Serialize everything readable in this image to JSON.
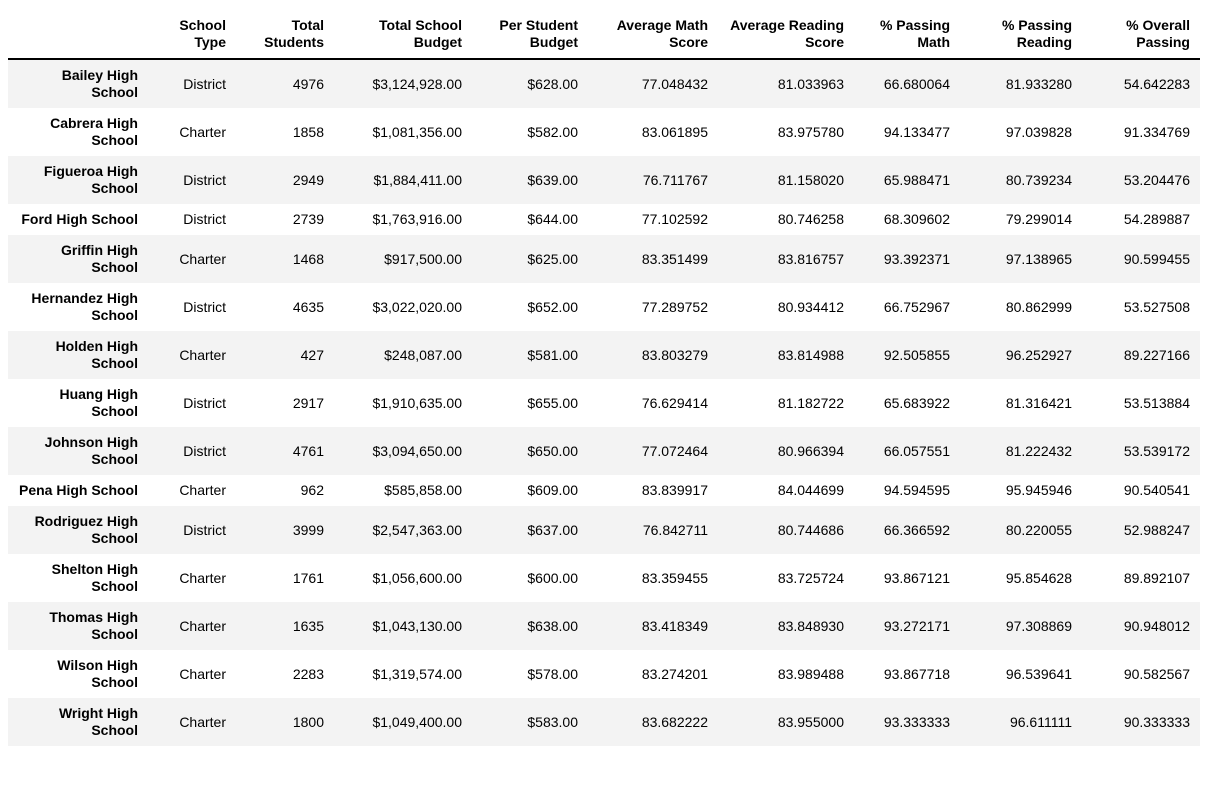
{
  "style": {
    "stripe_color": "#f3f3f3",
    "text_color": "#000000",
    "header_rule_color": "#000000",
    "background_color": "#ffffff"
  },
  "chart_data": {
    "type": "table",
    "title": "",
    "index_header": "",
    "columns": [
      "School Type",
      "Total Students",
      "Total School Budget",
      "Per Student Budget",
      "Average Math Score",
      "Average Reading Score",
      "% Passing Math",
      "% Passing Reading",
      "% Overall Passing"
    ],
    "rows": [
      {
        "index": "Bailey High School",
        "values": [
          "District",
          "4976",
          "$3,124,928.00",
          "$628.00",
          "77.048432",
          "81.033963",
          "66.680064",
          "81.933280",
          "54.642283"
        ]
      },
      {
        "index": "Cabrera High School",
        "values": [
          "Charter",
          "1858",
          "$1,081,356.00",
          "$582.00",
          "83.061895",
          "83.975780",
          "94.133477",
          "97.039828",
          "91.334769"
        ]
      },
      {
        "index": "Figueroa High School",
        "values": [
          "District",
          "2949",
          "$1,884,411.00",
          "$639.00",
          "76.711767",
          "81.158020",
          "65.988471",
          "80.739234",
          "53.204476"
        ]
      },
      {
        "index": "Ford High School",
        "values": [
          "District",
          "2739",
          "$1,763,916.00",
          "$644.00",
          "77.102592",
          "80.746258",
          "68.309602",
          "79.299014",
          "54.289887"
        ]
      },
      {
        "index": "Griffin High School",
        "values": [
          "Charter",
          "1468",
          "$917,500.00",
          "$625.00",
          "83.351499",
          "83.816757",
          "93.392371",
          "97.138965",
          "90.599455"
        ]
      },
      {
        "index": "Hernandez High School",
        "values": [
          "District",
          "4635",
          "$3,022,020.00",
          "$652.00",
          "77.289752",
          "80.934412",
          "66.752967",
          "80.862999",
          "53.527508"
        ]
      },
      {
        "index": "Holden High School",
        "values": [
          "Charter",
          "427",
          "$248,087.00",
          "$581.00",
          "83.803279",
          "83.814988",
          "92.505855",
          "96.252927",
          "89.227166"
        ]
      },
      {
        "index": "Huang High School",
        "values": [
          "District",
          "2917",
          "$1,910,635.00",
          "$655.00",
          "76.629414",
          "81.182722",
          "65.683922",
          "81.316421",
          "53.513884"
        ]
      },
      {
        "index": "Johnson High School",
        "values": [
          "District",
          "4761",
          "$3,094,650.00",
          "$650.00",
          "77.072464",
          "80.966394",
          "66.057551",
          "81.222432",
          "53.539172"
        ]
      },
      {
        "index": "Pena High School",
        "values": [
          "Charter",
          "962",
          "$585,858.00",
          "$609.00",
          "83.839917",
          "84.044699",
          "94.594595",
          "95.945946",
          "90.540541"
        ]
      },
      {
        "index": "Rodriguez High School",
        "values": [
          "District",
          "3999",
          "$2,547,363.00",
          "$637.00",
          "76.842711",
          "80.744686",
          "66.366592",
          "80.220055",
          "52.988247"
        ]
      },
      {
        "index": "Shelton High School",
        "values": [
          "Charter",
          "1761",
          "$1,056,600.00",
          "$600.00",
          "83.359455",
          "83.725724",
          "93.867121",
          "95.854628",
          "89.892107"
        ]
      },
      {
        "index": "Thomas High School",
        "values": [
          "Charter",
          "1635",
          "$1,043,130.00",
          "$638.00",
          "83.418349",
          "83.848930",
          "93.272171",
          "97.308869",
          "90.948012"
        ]
      },
      {
        "index": "Wilson High School",
        "values": [
          "Charter",
          "2283",
          "$1,319,574.00",
          "$578.00",
          "83.274201",
          "83.989488",
          "93.867718",
          "96.539641",
          "90.582567"
        ]
      },
      {
        "index": "Wright High School",
        "values": [
          "Charter",
          "1800",
          "$1,049,400.00",
          "$583.00",
          "83.682222",
          "83.955000",
          "93.333333",
          "96.611111",
          "90.333333"
        ]
      }
    ]
  }
}
